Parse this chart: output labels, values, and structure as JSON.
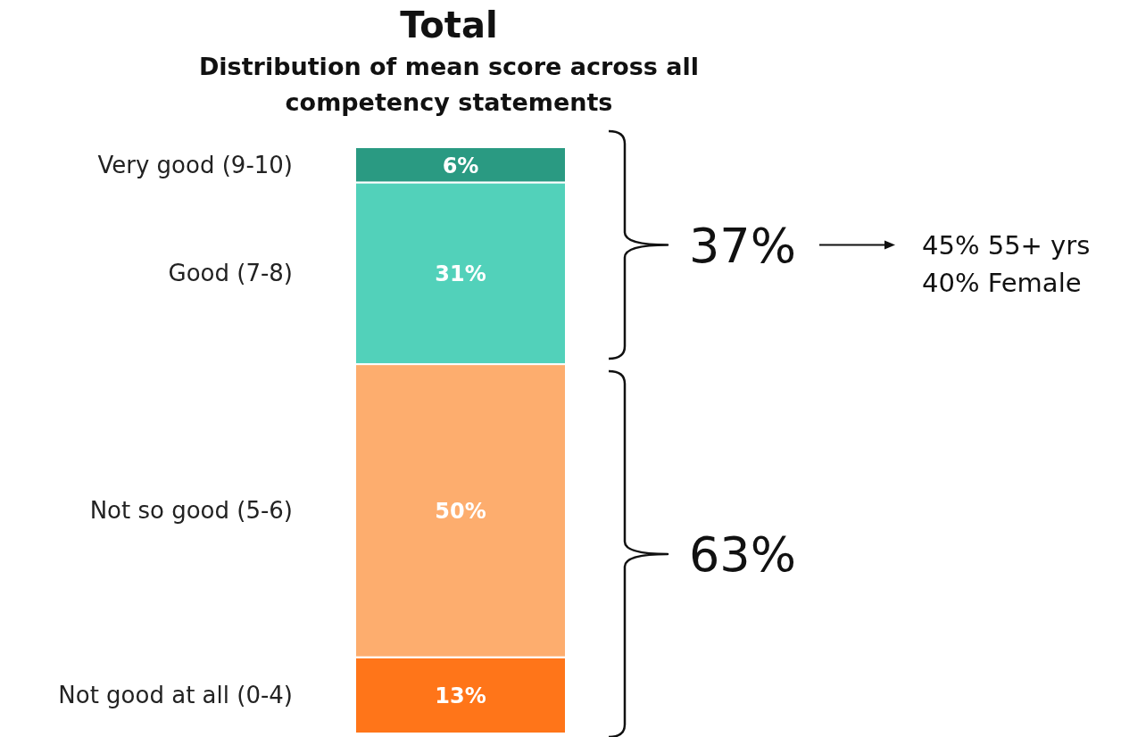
{
  "chart_data": {
    "type": "bar",
    "title": "Total",
    "subtitle": "Distribution of mean score across all competency statements",
    "categories": [
      null
    ],
    "stacked": true,
    "series": [
      {
        "name": "Not good at all (0-4)",
        "color": "#ff7519",
        "values": [
          13
        ],
        "value_labels": [
          "13%"
        ]
      },
      {
        "name": "Not so good (5-6)",
        "color": "#fdad6e",
        "values": [
          50
        ],
        "value_labels": [
          "50%"
        ]
      },
      {
        "name": "Good (7-8)",
        "color": "#52d1ba",
        "values": [
          31
        ],
        "value_labels": [
          "31%"
        ]
      },
      {
        "name": "Very good (9-10)",
        "color": "#2a9a82",
        "values": [
          6
        ],
        "value_labels": [
          "6%"
        ]
      }
    ],
    "annotations": [
      "37%",
      "63%",
      "45% 55+ yrs",
      "40% Female"
    ]
  }
}
